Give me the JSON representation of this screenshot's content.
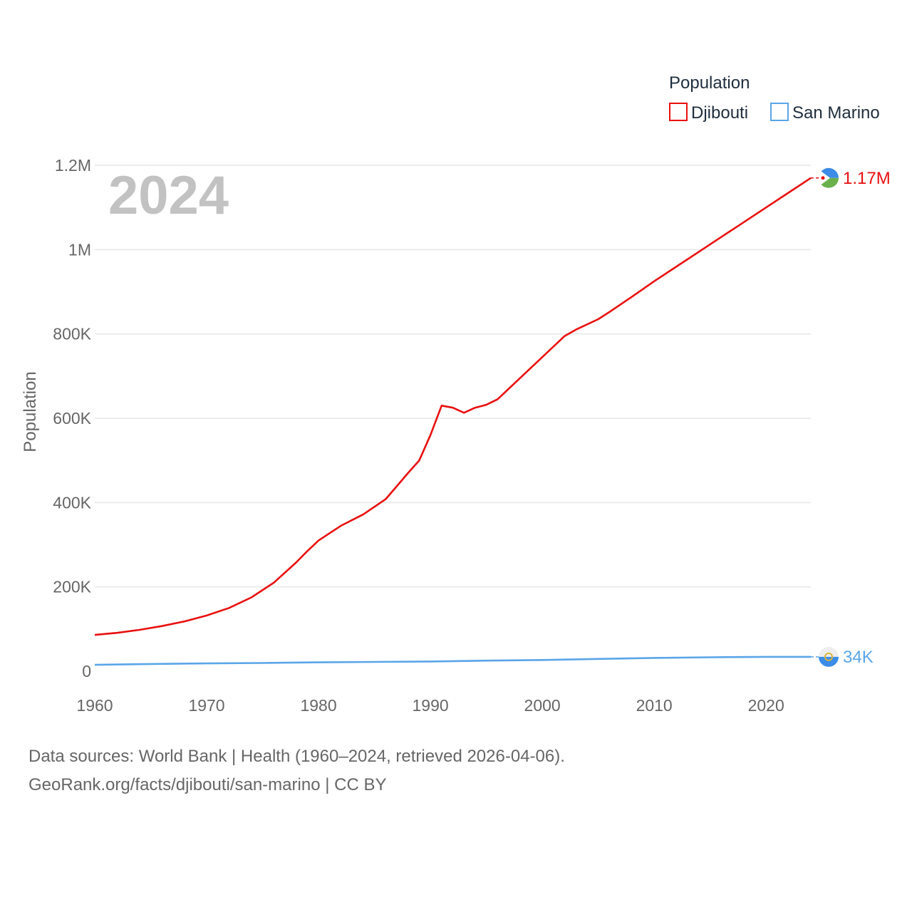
{
  "chart_data": {
    "type": "line",
    "year_label": "2024",
    "ylabel": "Population",
    "legend_title": "Population",
    "xlim": [
      1960,
      2024
    ],
    "ylim": [
      0,
      1200000
    ],
    "x_ticks": [
      1960,
      1970,
      1980,
      1990,
      2000,
      2010,
      2020
    ],
    "y_ticks": [
      0,
      200000,
      400000,
      600000,
      800000,
      1000000,
      1200000
    ],
    "y_tick_labels": [
      "0",
      "200K",
      "400K",
      "600K",
      "800K",
      "1M",
      "1.2M"
    ],
    "grid": true,
    "legend_position": "top-right",
    "series": [
      {
        "name": "Djibouti",
        "color": "#e8100f",
        "end_label": "1.17M",
        "flag_icon": "djibouti-flag-icon",
        "points": [
          [
            1960,
            86000
          ],
          [
            1962,
            91000
          ],
          [
            1964,
            98000
          ],
          [
            1966,
            107000
          ],
          [
            1968,
            118000
          ],
          [
            1970,
            132000
          ],
          [
            1972,
            150000
          ],
          [
            1974,
            175000
          ],
          [
            1976,
            210000
          ],
          [
            1978,
            258000
          ],
          [
            1979,
            285000
          ],
          [
            1980,
            310000
          ],
          [
            1982,
            345000
          ],
          [
            1984,
            372000
          ],
          [
            1986,
            408000
          ],
          [
            1988,
            470000
          ],
          [
            1989,
            500000
          ],
          [
            1990,
            560000
          ],
          [
            1991,
            630000
          ],
          [
            1992,
            625000
          ],
          [
            1993,
            613000
          ],
          [
            1994,
            625000
          ],
          [
            1995,
            632000
          ],
          [
            1996,
            645000
          ],
          [
            1998,
            695000
          ],
          [
            2000,
            745000
          ],
          [
            2002,
            795000
          ],
          [
            2003,
            810000
          ],
          [
            2005,
            835000
          ],
          [
            2006,
            852000
          ],
          [
            2008,
            888000
          ],
          [
            2010,
            925000
          ],
          [
            2012,
            960000
          ],
          [
            2014,
            995000
          ],
          [
            2016,
            1030000
          ],
          [
            2018,
            1065000
          ],
          [
            2020,
            1100000
          ],
          [
            2022,
            1135000
          ],
          [
            2024,
            1170000
          ]
        ]
      },
      {
        "name": "San Marino",
        "color": "#5aa5e8",
        "end_label": "34K",
        "flag_icon": "san-marino-flag-icon",
        "points": [
          [
            1960,
            15000
          ],
          [
            1965,
            17000
          ],
          [
            1970,
            18500
          ],
          [
            1975,
            19500
          ],
          [
            1980,
            21000
          ],
          [
            1985,
            22000
          ],
          [
            1990,
            23000
          ],
          [
            1995,
            25000
          ],
          [
            2000,
            26500
          ],
          [
            2005,
            29000
          ],
          [
            2010,
            31500
          ],
          [
            2015,
            33000
          ],
          [
            2020,
            34000
          ],
          [
            2024,
            34000
          ]
        ]
      }
    ]
  },
  "footer": {
    "line1": "Data sources: World Bank | Health (1960–2024, retrieved 2026-04-06).",
    "line2": "GeoRank.org/facts/djibouti/san-marino | CC BY"
  }
}
